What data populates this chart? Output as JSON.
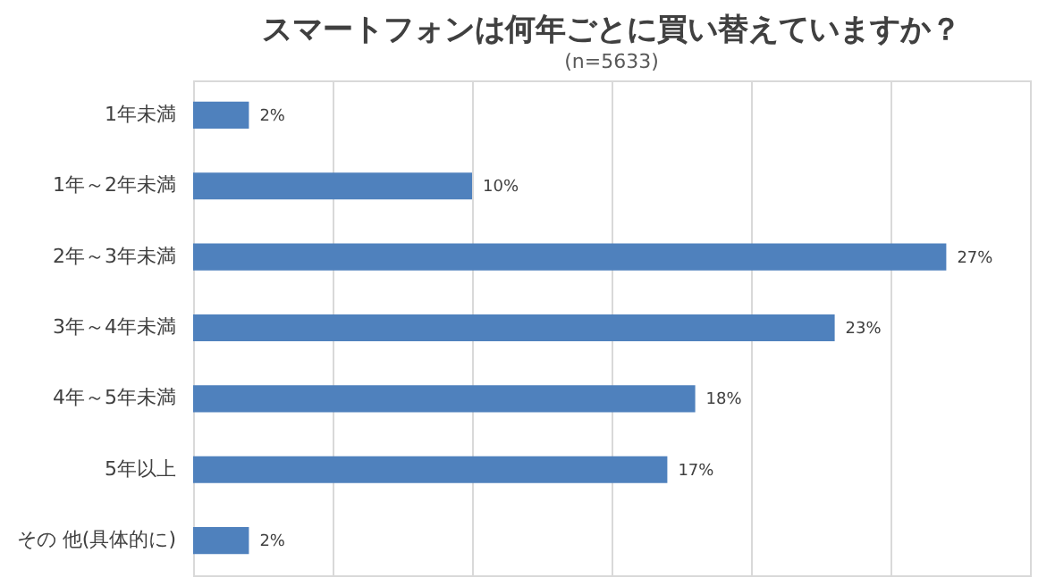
{
  "chart_data": {
    "type": "bar",
    "orientation": "horizontal",
    "title": "スマートフォンは何年ごとに買い替えていますか？",
    "subtitle": "(n=5633)",
    "categories": [
      "1年未満",
      "1年～2年未満",
      "2年～3年未満",
      "3年～4年未満",
      "4年～5年未満",
      "5年以上",
      "その 他(具体的に)"
    ],
    "values": [
      2,
      10,
      27,
      23,
      18,
      17,
      2
    ],
    "value_labels": [
      "2%",
      "10%",
      "27%",
      "23%",
      "18%",
      "17%",
      "2%"
    ],
    "color": "#4f81bd",
    "xlim": [
      0,
      30
    ],
    "xticks": [
      {
        "value": 0,
        "label": null
      },
      {
        "value": 5,
        "label": null
      },
      {
        "value": 10,
        "label": null
      },
      {
        "value": 15,
        "label": null
      },
      {
        "value": 20,
        "label": null
      },
      {
        "value": 25,
        "label": null
      },
      {
        "value": 30,
        "label": null
      }
    ],
    "tick_labels": "y",
    "grid": "x"
  }
}
